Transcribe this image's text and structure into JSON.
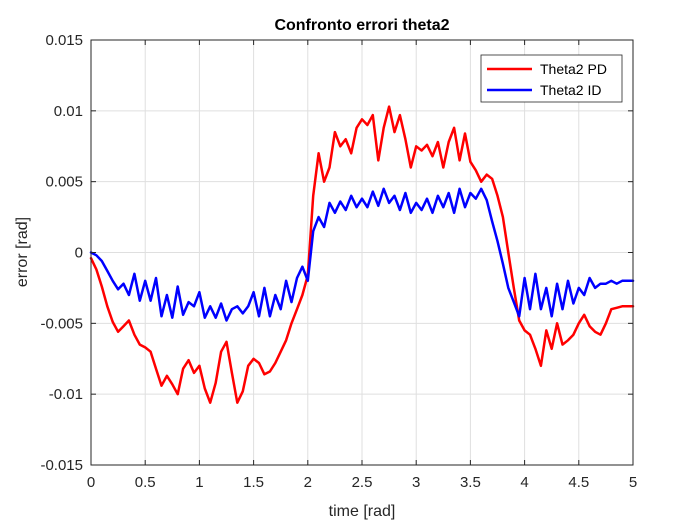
{
  "chart_data": {
    "type": "line",
    "title": "Confronto errori theta2",
    "xlabel": "time [rad]",
    "ylabel": "error [rad]",
    "xlim": [
      0,
      5
    ],
    "ylim": [
      -0.015,
      0.015
    ],
    "xticks": [
      0,
      0.5,
      1,
      1.5,
      2,
      2.5,
      3,
      3.5,
      4,
      4.5,
      5
    ],
    "xtick_labels": [
      "0",
      "0.5",
      "1",
      "1.5",
      "2",
      "2.5",
      "3",
      "3.5",
      "4",
      "4.5",
      "5"
    ],
    "yticks": [
      -0.015,
      -0.01,
      -0.005,
      0,
      0.005,
      0.01,
      0.015
    ],
    "ytick_labels": [
      "-0.015",
      "-0.01",
      "-0.005",
      "0",
      "0.005",
      "0.01",
      "0.015"
    ],
    "grid": true,
    "legend_position": "top-right",
    "series": [
      {
        "name": "Theta2 PD",
        "color": "#ff0000",
        "x": [
          0,
          0.05,
          0.1,
          0.15,
          0.2,
          0.25,
          0.3,
          0.35,
          0.4,
          0.45,
          0.5,
          0.55,
          0.6,
          0.65,
          0.7,
          0.75,
          0.8,
          0.85,
          0.9,
          0.95,
          1.0,
          1.05,
          1.1,
          1.15,
          1.2,
          1.25,
          1.3,
          1.35,
          1.4,
          1.45,
          1.5,
          1.55,
          1.6,
          1.65,
          1.7,
          1.75,
          1.8,
          1.85,
          1.9,
          1.95,
          2.0,
          2.05,
          2.1,
          2.15,
          2.2,
          2.25,
          2.3,
          2.35,
          2.4,
          2.45,
          2.5,
          2.55,
          2.6,
          2.65,
          2.7,
          2.75,
          2.8,
          2.85,
          2.9,
          2.95,
          3.0,
          3.05,
          3.1,
          3.15,
          3.2,
          3.25,
          3.3,
          3.35,
          3.4,
          3.45,
          3.5,
          3.55,
          3.6,
          3.65,
          3.7,
          3.75,
          3.8,
          3.85,
          3.9,
          3.95,
          4.0,
          4.05,
          4.1,
          4.15,
          4.2,
          4.25,
          4.3,
          4.35,
          4.4,
          4.45,
          4.5,
          4.55,
          4.6,
          4.65,
          4.7,
          4.75,
          4.8,
          4.85,
          4.9,
          4.95,
          5.0
        ],
        "y": [
          -0.0004,
          -0.0012,
          -0.0024,
          -0.0038,
          -0.0049,
          -0.0056,
          -0.0052,
          -0.0048,
          -0.0058,
          -0.0065,
          -0.0067,
          -0.007,
          -0.0082,
          -0.0094,
          -0.0087,
          -0.0093,
          -0.01,
          -0.0082,
          -0.0076,
          -0.0085,
          -0.008,
          -0.0096,
          -0.0106,
          -0.0092,
          -0.007,
          -0.0063,
          -0.0085,
          -0.0106,
          -0.0098,
          -0.008,
          -0.0075,
          -0.0078,
          -0.0086,
          -0.0084,
          -0.0078,
          -0.007,
          -0.0062,
          -0.005,
          -0.004,
          -0.003,
          -0.0016,
          0.004,
          0.007,
          0.005,
          0.006,
          0.0085,
          0.0075,
          0.008,
          0.007,
          0.0088,
          0.0094,
          0.009,
          0.0097,
          0.0065,
          0.0088,
          0.0103,
          0.0085,
          0.0097,
          0.008,
          0.006,
          0.0075,
          0.0072,
          0.0076,
          0.0068,
          0.0078,
          0.006,
          0.0078,
          0.0088,
          0.0065,
          0.0084,
          0.0064,
          0.0058,
          0.005,
          0.0055,
          0.0052,
          0.004,
          0.0025,
          0.0,
          -0.0025,
          -0.0048,
          -0.0055,
          -0.0058,
          -0.0068,
          -0.008,
          -0.0055,
          -0.0068,
          -0.005,
          -0.0065,
          -0.0062,
          -0.0058,
          -0.005,
          -0.0044,
          -0.0052,
          -0.0056,
          -0.0058,
          -0.005,
          -0.004,
          -0.0039,
          -0.0038,
          -0.0038,
          -0.0038
        ]
      },
      {
        "name": "Theta2 ID",
        "color": "#0000ff",
        "x": [
          0,
          0.05,
          0.1,
          0.15,
          0.2,
          0.25,
          0.3,
          0.35,
          0.4,
          0.45,
          0.5,
          0.55,
          0.6,
          0.65,
          0.7,
          0.75,
          0.8,
          0.85,
          0.9,
          0.95,
          1.0,
          1.05,
          1.1,
          1.15,
          1.2,
          1.25,
          1.3,
          1.35,
          1.4,
          1.45,
          1.5,
          1.55,
          1.6,
          1.65,
          1.7,
          1.75,
          1.8,
          1.85,
          1.9,
          1.95,
          2.0,
          2.05,
          2.1,
          2.15,
          2.2,
          2.25,
          2.3,
          2.35,
          2.4,
          2.45,
          2.5,
          2.55,
          2.6,
          2.65,
          2.7,
          2.75,
          2.8,
          2.85,
          2.9,
          2.95,
          3.0,
          3.05,
          3.1,
          3.15,
          3.2,
          3.25,
          3.3,
          3.35,
          3.4,
          3.45,
          3.5,
          3.55,
          3.6,
          3.65,
          3.7,
          3.75,
          3.8,
          3.85,
          3.9,
          3.95,
          4.0,
          4.05,
          4.1,
          4.15,
          4.2,
          4.25,
          4.3,
          4.35,
          4.4,
          4.45,
          4.5,
          4.55,
          4.6,
          4.65,
          4.7,
          4.75,
          4.8,
          4.85,
          4.9,
          4.95,
          5.0
        ],
        "y": [
          0.0,
          -0.0002,
          -0.0006,
          -0.0013,
          -0.002,
          -0.0026,
          -0.0022,
          -0.003,
          -0.0015,
          -0.0034,
          -0.002,
          -0.0034,
          -0.0018,
          -0.0045,
          -0.003,
          -0.0046,
          -0.0024,
          -0.0044,
          -0.0035,
          -0.0038,
          -0.0028,
          -0.0046,
          -0.0038,
          -0.0046,
          -0.0036,
          -0.0048,
          -0.004,
          -0.0038,
          -0.0043,
          -0.0038,
          -0.0028,
          -0.0045,
          -0.0025,
          -0.0045,
          -0.003,
          -0.004,
          -0.002,
          -0.0035,
          -0.0018,
          -0.001,
          -0.002,
          0.0015,
          0.0025,
          0.0018,
          0.0035,
          0.0028,
          0.0036,
          0.003,
          0.004,
          0.0032,
          0.0038,
          0.0032,
          0.0043,
          0.0033,
          0.0045,
          0.0035,
          0.004,
          0.003,
          0.0042,
          0.0028,
          0.0035,
          0.003,
          0.0038,
          0.0028,
          0.004,
          0.0032,
          0.0042,
          0.0028,
          0.0045,
          0.0032,
          0.0042,
          0.0038,
          0.0045,
          0.0037,
          0.0022,
          0.0008,
          -0.0008,
          -0.0025,
          -0.0035,
          -0.0045,
          -0.0018,
          -0.004,
          -0.0015,
          -0.004,
          -0.0025,
          -0.0045,
          -0.0022,
          -0.004,
          -0.002,
          -0.0036,
          -0.0025,
          -0.003,
          -0.0018,
          -0.0025,
          -0.0022,
          -0.0022,
          -0.002,
          -0.0022,
          -0.002,
          -0.002,
          -0.002
        ]
      }
    ]
  }
}
